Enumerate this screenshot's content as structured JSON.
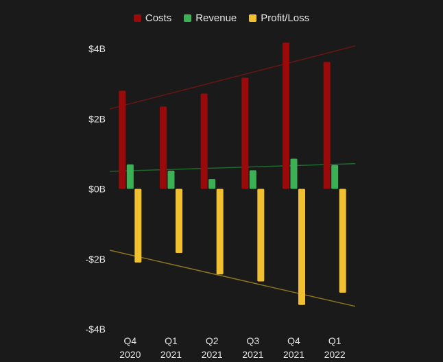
{
  "chart_data": {
    "type": "bar",
    "categories": [
      [
        "Q4",
        "2020"
      ],
      [
        "Q1",
        "2021"
      ],
      [
        "Q2",
        "2021"
      ],
      [
        "Q3",
        "2021"
      ],
      [
        "Q4",
        "2021"
      ],
      [
        "Q1",
        "2022"
      ]
    ],
    "series": [
      {
        "name": "Costs",
        "color": "#9a0a0a",
        "values": [
          2.8,
          2.35,
          2.72,
          3.17,
          4.17,
          3.62
        ]
      },
      {
        "name": "Revenue",
        "color": "#3cb054",
        "values": [
          0.7,
          0.52,
          0.28,
          0.53,
          0.86,
          0.68
        ]
      },
      {
        "name": "Profit/Loss",
        "color": "#f0c030",
        "values": [
          -2.1,
          -1.83,
          -2.44,
          -2.64,
          -3.31,
          -2.96
        ]
      }
    ],
    "trendlines": [
      {
        "series": "Costs",
        "color": "#6a1515",
        "start": 2.28,
        "end": 4.08
      },
      {
        "series": "Revenue",
        "color": "#1f6a2e",
        "start": 0.5,
        "end": 0.72
      },
      {
        "series": "Profit/Loss",
        "color": "#8a7320",
        "start": -1.75,
        "end": -3.35
      }
    ],
    "y_ticks": [
      {
        "value": 4,
        "label": "$4B"
      },
      {
        "value": 2,
        "label": "$2B"
      },
      {
        "value": 0,
        "label": "$0B"
      },
      {
        "value": -2,
        "label": "-$2B"
      },
      {
        "value": -4,
        "label": "-$4B"
      }
    ],
    "ylim": [
      -4,
      4
    ],
    "legend": "top-center",
    "grid": false
  }
}
